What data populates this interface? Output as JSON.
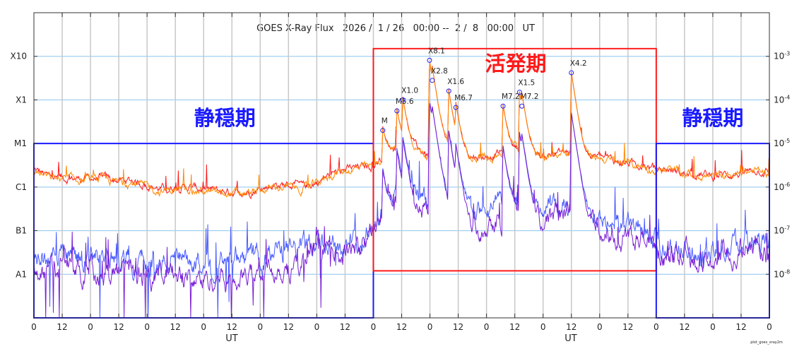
{
  "chart_data": {
    "type": "line",
    "title": "GOES X-Ray Flux   2026 /  1 / 26   00:00 --  2 /  8   00:00   UT",
    "xlabel": "UT",
    "x_range": [
      "2026-01-26 00:00",
      "2026-02-08 00:00"
    ],
    "x_tick_labels": [
      "0",
      "12",
      "0",
      "12",
      "0",
      "12",
      "0",
      "12",
      "0",
      "12",
      "0",
      "12",
      "0",
      "12",
      "0",
      "12",
      "0",
      "12",
      "0",
      "12",
      "0",
      "12",
      "0",
      "12",
      "0",
      "12",
      "0"
    ],
    "y_scale": "log",
    "ylim": [
      1e-09,
      0.01
    ],
    "y_left_tick_labels": [
      "X10",
      "X1",
      "M1",
      "C1",
      "B1",
      "A1"
    ],
    "y_left_tick_values": [
      0.001,
      0.0001,
      1e-05,
      1e-06,
      1e-07,
      1e-08
    ],
    "y_right_tick_labels": [
      "10-3",
      "10-4",
      "10-5",
      "10-6",
      "10-7",
      "10-8"
    ],
    "grid": true,
    "series_step_hours": 6,
    "series": [
      {
        "color": "#ff1a1a",
        "log10_flux": [
          -5.6,
          -5.75,
          -5.8,
          -5.8,
          -5.8,
          -5.8,
          -5.85,
          -5.85,
          -5.95,
          -6.05,
          -6.0,
          -6.0,
          -6.05,
          -6.1,
          -6.1,
          -6.1,
          -6.05,
          -5.95,
          -5.95,
          -6.0,
          -5.9,
          -5.7,
          -5.6,
          -5.55,
          -5.5,
          -5.2,
          -5.0,
          -5.1,
          -5.3,
          -5.0,
          -5.2,
          -5.3,
          -5.3,
          -5.2,
          -5.1,
          -5.2,
          -5.3,
          -5.2,
          -5.2,
          -5.3,
          -5.3,
          -5.4,
          -5.45,
          -5.5,
          -5.6,
          -5.6,
          -5.7,
          -5.7,
          -5.75,
          -5.7,
          -5.7,
          -5.6,
          -5.65
        ]
      },
      {
        "color": "#ff8800",
        "log10_flux": [
          -5.62,
          -5.78,
          -5.83,
          -5.83,
          -5.83,
          -5.84,
          -5.9,
          -5.9,
          -6.0,
          -6.1,
          -6.05,
          -6.05,
          -6.1,
          -6.15,
          -6.15,
          -6.15,
          -6.1,
          -6.0,
          -6.0,
          -6.05,
          -5.93,
          -5.72,
          -5.62,
          -5.57,
          -5.52,
          -5.22,
          -5.02,
          -5.12,
          -5.32,
          -5.02,
          -5.22,
          -5.32,
          -5.32,
          -5.22,
          -5.12,
          -5.22,
          -5.32,
          -5.22,
          -5.22,
          -5.32,
          -5.32,
          -5.42,
          -5.47,
          -5.52,
          -5.62,
          -5.62,
          -5.72,
          -5.72,
          -5.77,
          -5.72,
          -5.72,
          -5.62,
          -5.67
        ]
      },
      {
        "color": "#4a5cff",
        "log10_flux": [
          -7.5,
          -7.6,
          -7.5,
          -7.6,
          -7.6,
          -7.7,
          -7.6,
          -7.7,
          -7.7,
          -7.8,
          -7.7,
          -7.8,
          -7.8,
          -7.7,
          -7.8,
          -7.8,
          -7.6,
          -7.5,
          -7.5,
          -7.4,
          -7.3,
          -7.2,
          -7.3,
          -7.3,
          -6.8,
          -6.3,
          -6.0,
          -6.2,
          -6.5,
          -6.2,
          -6.4,
          -6.7,
          -6.6,
          -6.4,
          -6.3,
          -6.5,
          -6.6,
          -6.5,
          -6.3,
          -6.6,
          -6.8,
          -6.9,
          -6.9,
          -7.0,
          -7.3,
          -7.4,
          -7.4,
          -7.5,
          -7.5,
          -7.4,
          -7.3,
          -7.2,
          -7.3
        ]
      },
      {
        "color": "#7a1fd6",
        "log10_flux": [
          -7.8,
          -7.9,
          -7.8,
          -7.9,
          -7.9,
          -8.0,
          -7.9,
          -8.0,
          -8.0,
          -8.1,
          -8.0,
          -8.1,
          -8.1,
          -8.0,
          -8.1,
          -8.1,
          -7.9,
          -7.8,
          -7.8,
          -7.7,
          -7.5,
          -7.4,
          -7.5,
          -7.5,
          -7.0,
          -6.5,
          -6.2,
          -6.4,
          -6.7,
          -6.4,
          -6.6,
          -6.9,
          -6.8,
          -6.6,
          -6.5,
          -6.7,
          -6.8,
          -6.7,
          -6.5,
          -6.8,
          -7.0,
          -7.1,
          -7.1,
          -7.2,
          -7.5,
          -7.6,
          -7.6,
          -7.7,
          -7.7,
          -7.6,
          -7.5,
          -7.4,
          -7.5
        ]
      }
    ],
    "flares": [
      {
        "label": "M",
        "time": "2026-02-01 04:00",
        "flux": 2e-05
      },
      {
        "label": "M5.6",
        "time": "2026-02-01 10:00",
        "flux": 5.6e-05
      },
      {
        "label": "X1.0",
        "time": "2026-02-01 12:30",
        "flux": 0.0001
      },
      {
        "label": "X8.1",
        "time": "2026-02-01 23:50",
        "flux": 0.00081
      },
      {
        "label": "X2.8",
        "time": "2026-02-02 01:00",
        "flux": 0.00028
      },
      {
        "label": "X1.6",
        "time": "2026-02-02 08:00",
        "flux": 0.00016
      },
      {
        "label": "M6.7",
        "time": "2026-02-02 11:00",
        "flux": 6.7e-05
      },
      {
        "label": "M7.2",
        "time": "2026-02-03 07:00",
        "flux": 7.2e-05
      },
      {
        "label": "X1.5",
        "time": "2026-02-03 14:00",
        "flux": 0.00015
      },
      {
        "label": "M7.2",
        "time": "2026-02-03 15:00",
        "flux": 7.2e-05
      },
      {
        "label": "X4.2",
        "time": "2026-02-04 12:00",
        "flux": 0.00042
      }
    ],
    "annotations": [
      {
        "text": "静穏期",
        "color": "#1a1aff",
        "from": "2026-01-26 00:00",
        "to": "2026-02-01 00:00",
        "flux_top": 1e-05,
        "flux_bottom": 1e-09
      },
      {
        "text": "活発期",
        "color": "#ff1a1a",
        "from": "2026-02-01 00:00",
        "to": "2026-02-06 00:00",
        "flux_top": 0.0015,
        "flux_bottom": 1.2e-08
      },
      {
        "text": "静穏期",
        "color": "#1a1aff",
        "from": "2026-02-06 00:00",
        "to": "2026-02-08 00:00",
        "flux_top": 1e-05,
        "flux_bottom": 1e-09
      }
    ],
    "footnote": "plot_goes_xray2m"
  }
}
